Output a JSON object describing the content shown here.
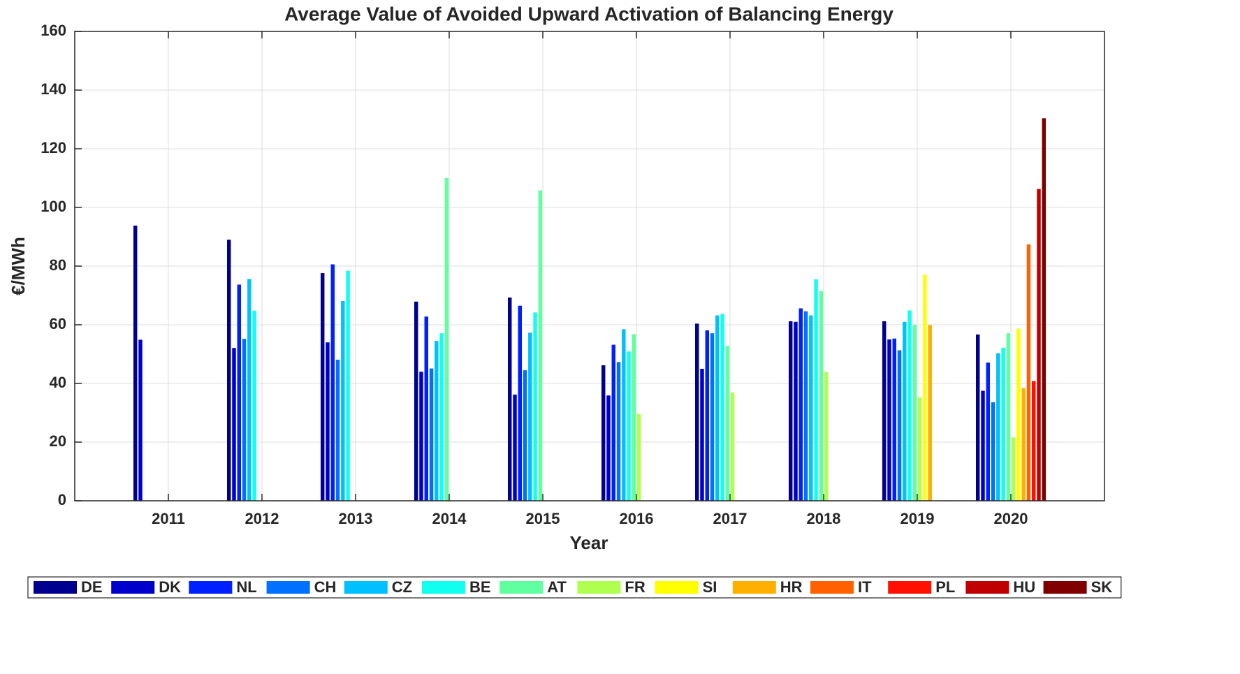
{
  "chart_data": {
    "type": "bar",
    "title": "Average Value of Avoided Upward Activation of Balancing Energy",
    "x_label": "Year",
    "y_label": "€/MWh",
    "x": [
      2011,
      2012,
      2013,
      2014,
      2015,
      2016,
      2017,
      2018,
      2019,
      2020
    ],
    "xlim": [
      2010,
      2021
    ],
    "xticks": [
      2011,
      2012,
      2013,
      2014,
      2015,
      2016,
      2017,
      2018,
      2019,
      2020
    ],
    "ylim": [
      0,
      160
    ],
    "yticks": [
      0,
      20,
      40,
      60,
      80,
      100,
      120,
      140,
      160
    ],
    "grid": true,
    "series": [
      {
        "name": "DE",
        "color": "#00008f",
        "values": [
          93.8,
          89,
          77.6,
          67.9,
          69.3,
          46.2,
          60.4,
          61.2,
          61.2,
          56.7
        ]
      },
      {
        "name": "DK",
        "color": "#0000cc",
        "values": [
          54.9,
          52.1,
          54,
          44,
          36.2,
          35.9,
          45,
          61,
          55,
          37.5
        ]
      },
      {
        "name": "NL",
        "color": "#0020ff",
        "values": [
          null,
          73.7,
          80.6,
          62.8,
          66.5,
          53.2,
          58.1,
          65.6,
          55.3,
          47.1
        ]
      },
      {
        "name": "CH",
        "color": "#0070ff",
        "values": [
          null,
          55.2,
          48.1,
          45.1,
          44.5,
          47.3,
          57.1,
          64.6,
          51.3,
          33.6
        ]
      },
      {
        "name": "CZ",
        "color": "#00c0ff",
        "values": [
          null,
          75.6,
          68.1,
          54.5,
          57.3,
          58.5,
          63.2,
          63.2,
          61,
          50.3
        ]
      },
      {
        "name": "BE",
        "color": "#10ffef",
        "values": [
          null,
          64.8,
          78.4,
          57.1,
          64.2,
          50.9,
          63.7,
          75.5,
          64.9,
          52.2
        ]
      },
      {
        "name": "AT",
        "color": "#60ff9f",
        "values": [
          null,
          null,
          null,
          110,
          105.8,
          56.8,
          52.8,
          71.5,
          60,
          57.1
        ]
      },
      {
        "name": "FR",
        "color": "#afff50",
        "values": [
          null,
          null,
          null,
          null,
          null,
          29.6,
          36.9,
          43.9,
          35.3,
          21.6
        ]
      },
      {
        "name": "SI",
        "color": "#ffff00",
        "values": [
          null,
          null,
          null,
          null,
          null,
          null,
          null,
          null,
          77.1,
          58.7
        ]
      },
      {
        "name": "HR",
        "color": "#ffaf00",
        "values": [
          null,
          null,
          null,
          null,
          null,
          null,
          null,
          null,
          59.9,
          38.4
        ]
      },
      {
        "name": "IT",
        "color": "#ff6000",
        "values": [
          null,
          null,
          null,
          null,
          null,
          null,
          null,
          null,
          null,
          87.4
        ]
      },
      {
        "name": "PL",
        "color": "#ff1000",
        "values": [
          null,
          null,
          null,
          null,
          null,
          null,
          null,
          null,
          null,
          40.8
        ]
      },
      {
        "name": "HU",
        "color": "#c00000",
        "values": [
          null,
          null,
          null,
          null,
          null,
          null,
          null,
          null,
          null,
          106.3
        ]
      },
      {
        "name": "SK",
        "color": "#800000",
        "values": [
          null,
          null,
          null,
          null,
          null,
          null,
          null,
          null,
          null,
          130.4
        ]
      }
    ]
  }
}
